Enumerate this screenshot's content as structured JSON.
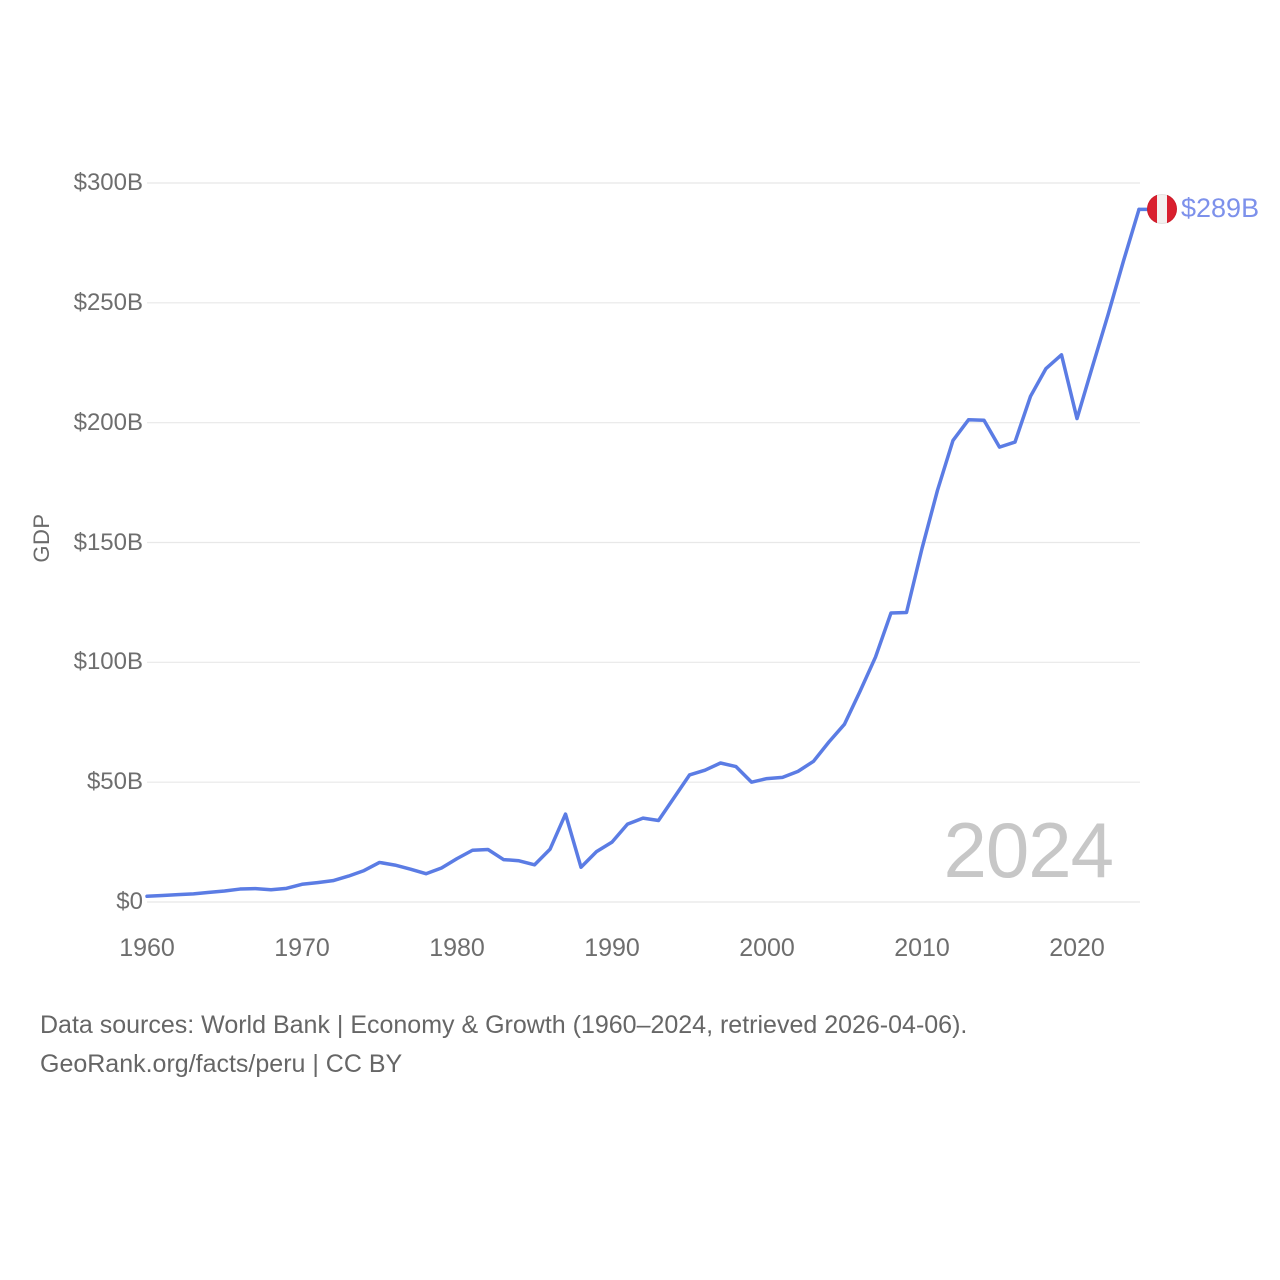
{
  "chart_data": {
    "type": "line",
    "ylabel": "GDP",
    "grid": "horizontal",
    "legend": "none",
    "xlim": [
      1960,
      2024
    ],
    "ylim": [
      0,
      300
    ],
    "line_color": "#5b7ce4",
    "gridline_color": "#e8e8e8",
    "x": [
      1960,
      1961,
      1962,
      1963,
      1964,
      1965,
      1966,
      1967,
      1968,
      1969,
      1970,
      1971,
      1972,
      1973,
      1974,
      1975,
      1976,
      1977,
      1978,
      1979,
      1980,
      1981,
      1982,
      1983,
      1984,
      1985,
      1986,
      1987,
      1988,
      1989,
      1990,
      1991,
      1992,
      1993,
      1994,
      1995,
      1996,
      1997,
      1998,
      1999,
      2000,
      2001,
      2002,
      2003,
      2004,
      2005,
      2006,
      2007,
      2008,
      2009,
      2010,
      2011,
      2012,
      2013,
      2014,
      2015,
      2016,
      2017,
      2018,
      2019,
      2020,
      2021,
      2022,
      2023,
      2024
    ],
    "values": [
      2.4,
      2.7,
      3.1,
      3.4,
      4.0,
      4.6,
      5.4,
      5.6,
      5.1,
      5.7,
      7.4,
      8.1,
      8.9,
      10.8,
      13.1,
      16.5,
      15.4,
      13.7,
      11.8,
      14.2,
      18.1,
      21.6,
      21.9,
      17.7,
      17.2,
      15.5,
      22.0,
      36.7,
      14.5,
      21.0,
      25.0,
      32.5,
      35.0,
      34.0,
      43.5,
      53.0,
      55.0,
      58.0,
      56.5,
      50.0,
      51.5,
      52.0,
      54.5,
      58.7,
      66.8,
      74.2,
      87.9,
      102.2,
      120.6,
      120.8,
      147.5,
      171.8,
      192.6,
      201.2,
      201.0,
      189.8,
      191.9,
      211.0,
      222.6,
      228.3,
      201.7,
      223.5,
      245.0,
      267.5,
      289.0
    ],
    "yticks": [
      {
        "value": 0,
        "label": "$0"
      },
      {
        "value": 50,
        "label": "$50B"
      },
      {
        "value": 100,
        "label": "$100B"
      },
      {
        "value": 150,
        "label": "$150B"
      },
      {
        "value": 200,
        "label": "$200B"
      },
      {
        "value": 250,
        "label": "$250B"
      },
      {
        "value": 300,
        "label": "$300B"
      }
    ],
    "xticks": [
      {
        "value": 1960,
        "label": "1960"
      },
      {
        "value": 1970,
        "label": "1970"
      },
      {
        "value": 1980,
        "label": "1980"
      },
      {
        "value": 1990,
        "label": "1990"
      },
      {
        "value": 2000,
        "label": "2000"
      },
      {
        "value": 2010,
        "label": "2010"
      },
      {
        "value": 2020,
        "label": "2020"
      }
    ],
    "end_point": {
      "year": 2024,
      "label": "$289B",
      "marker": "peru-flag"
    }
  },
  "watermark": "2024",
  "flag_colors": {
    "red": "#d91f2e",
    "white": "#f4f1f0"
  },
  "footer": {
    "line1": "Data sources: World Bank | Economy & Growth (1960–2024, retrieved 2026-04-06).",
    "line2": "GeoRank.org/facts/peru | CC BY"
  }
}
